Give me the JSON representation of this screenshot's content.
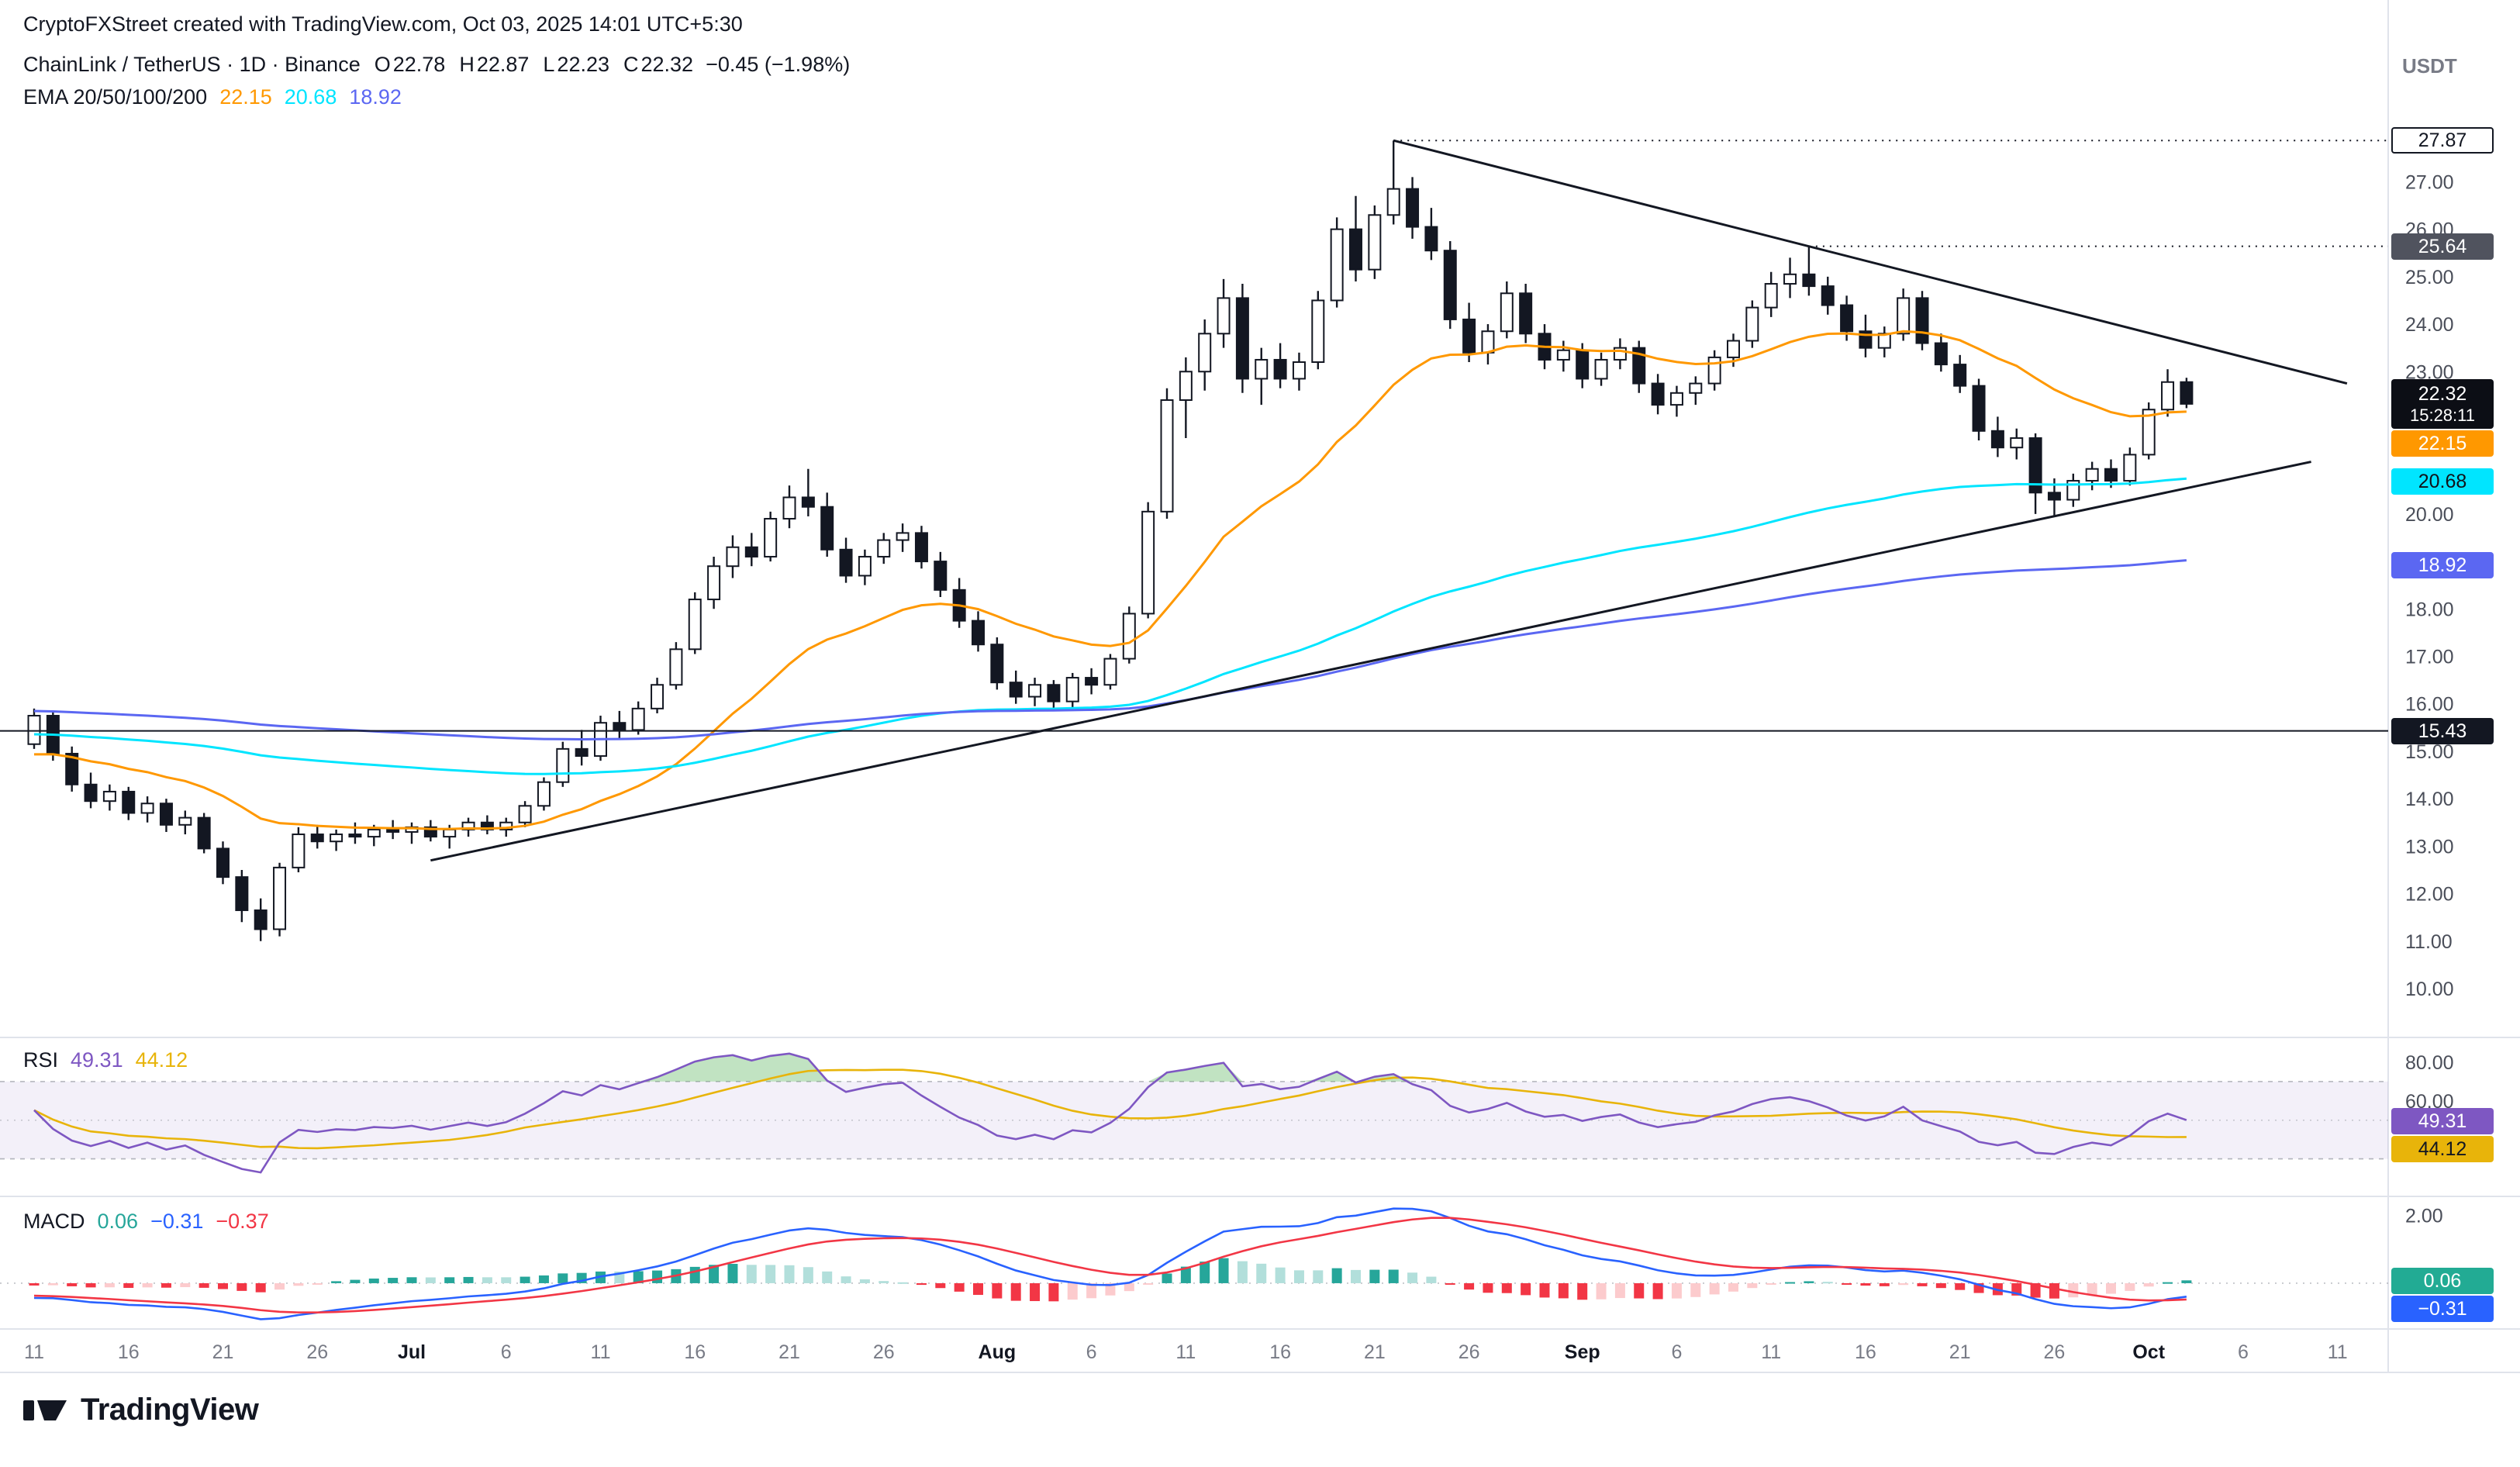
{
  "attribution": "CryptoFXStreet created with TradingView.com, Oct 03, 2025 14:01 UTC+5:30",
  "quote_currency": "USDT",
  "header": {
    "series_title": "ChainLink / TetherUS · 1D · Binance",
    "ohlc_labels": {
      "o": "O",
      "h": "H",
      "l": "L",
      "c": "C"
    },
    "ohlc": {
      "o": "22.78",
      "h": "22.87",
      "l": "22.23",
      "c": "22.32"
    },
    "change": "−0.45 (−1.98%)",
    "ema_label": "EMA 20/50/100/200"
  },
  "indicator_labels": {
    "rsi": "RSI",
    "macd": "MACD"
  },
  "footer": {
    "brand": "TradingView"
  },
  "colors": {
    "text": "#131722",
    "axis_text": "#4a4e59",
    "time_text": "#787b86",
    "month_text": "#131722",
    "separator": "#e0e3eb",
    "up_candle": "#ffffff",
    "down_candle": "#131722",
    "candle_border": "#131722",
    "trendline": "#131722",
    "hline": "#131722",
    "rsi_band": "rgba(126,87,194,0.09)",
    "rsi_guide": "#9598a1",
    "rsi_overbought_fill": "rgba(76,175,80,0.35)",
    "hist_pos_strong": "#26a69a",
    "hist_pos_weak": "#b2dfdb",
    "hist_neg_strong": "#f23645",
    "hist_neg_weak": "#fccbcd"
  },
  "chart_data": {
    "type": "candlestick",
    "symbol": "ChainLink / TetherUS",
    "exchange": "Binance",
    "interval": "1D",
    "last_close": 22.32,
    "countdown": "15:28:11",
    "candles": [
      [
        15.15,
        15.9,
        15.05,
        15.75
      ],
      [
        15.75,
        15.85,
        14.8,
        14.95
      ],
      [
        14.95,
        15.1,
        14.15,
        14.3
      ],
      [
        14.3,
        14.55,
        13.8,
        13.95
      ],
      [
        13.95,
        14.3,
        13.75,
        14.15
      ],
      [
        14.15,
        14.25,
        13.55,
        13.7
      ],
      [
        13.7,
        14.05,
        13.5,
        13.9
      ],
      [
        13.9,
        14.0,
        13.3,
        13.45
      ],
      [
        13.45,
        13.75,
        13.25,
        13.6
      ],
      [
        13.6,
        13.7,
        12.85,
        12.95
      ],
      [
        12.95,
        13.1,
        12.2,
        12.35
      ],
      [
        12.35,
        12.5,
        11.4,
        11.65
      ],
      [
        11.65,
        11.9,
        11.0,
        11.25
      ],
      [
        11.25,
        12.65,
        11.1,
        12.55
      ],
      [
        12.55,
        13.4,
        12.45,
        13.25
      ],
      [
        13.25,
        13.45,
        12.95,
        13.1
      ],
      [
        13.1,
        13.35,
        12.9,
        13.25
      ],
      [
        13.25,
        13.5,
        13.05,
        13.2
      ],
      [
        13.2,
        13.45,
        13.0,
        13.35
      ],
      [
        13.35,
        13.55,
        13.15,
        13.3
      ],
      [
        13.3,
        13.5,
        13.05,
        13.4
      ],
      [
        13.4,
        13.55,
        13.1,
        13.2
      ],
      [
        13.2,
        13.45,
        12.95,
        13.35
      ],
      [
        13.35,
        13.6,
        13.2,
        13.5
      ],
      [
        13.5,
        13.65,
        13.25,
        13.35
      ],
      [
        13.35,
        13.6,
        13.2,
        13.5
      ],
      [
        13.5,
        13.95,
        13.4,
        13.85
      ],
      [
        13.85,
        14.45,
        13.75,
        14.35
      ],
      [
        14.35,
        15.2,
        14.25,
        15.05
      ],
      [
        15.05,
        15.45,
        14.7,
        14.9
      ],
      [
        14.9,
        15.75,
        14.8,
        15.6
      ],
      [
        15.6,
        15.85,
        15.25,
        15.45
      ],
      [
        15.45,
        16.05,
        15.35,
        15.9
      ],
      [
        15.9,
        16.55,
        15.8,
        16.4
      ],
      [
        16.4,
        17.3,
        16.3,
        17.15
      ],
      [
        17.15,
        18.35,
        17.05,
        18.2
      ],
      [
        18.2,
        19.1,
        18.0,
        18.9
      ],
      [
        18.9,
        19.55,
        18.65,
        19.3
      ],
      [
        19.3,
        19.6,
        18.9,
        19.1
      ],
      [
        19.1,
        20.05,
        19.0,
        19.9
      ],
      [
        19.9,
        20.6,
        19.7,
        20.35
      ],
      [
        20.35,
        20.95,
        19.95,
        20.15
      ],
      [
        20.15,
        20.45,
        19.1,
        19.25
      ],
      [
        19.25,
        19.5,
        18.55,
        18.7
      ],
      [
        18.7,
        19.25,
        18.5,
        19.1
      ],
      [
        19.1,
        19.6,
        18.95,
        19.45
      ],
      [
        19.45,
        19.8,
        19.2,
        19.6
      ],
      [
        19.6,
        19.75,
        18.85,
        19.0
      ],
      [
        19.0,
        19.2,
        18.25,
        18.4
      ],
      [
        18.4,
        18.65,
        17.6,
        17.75
      ],
      [
        17.75,
        17.95,
        17.1,
        17.25
      ],
      [
        17.25,
        17.4,
        16.3,
        16.45
      ],
      [
        16.45,
        16.7,
        16.0,
        16.15
      ],
      [
        16.15,
        16.55,
        15.95,
        16.4
      ],
      [
        16.4,
        16.5,
        15.9,
        16.05
      ],
      [
        16.05,
        16.65,
        15.85,
        16.55
      ],
      [
        16.55,
        16.75,
        16.2,
        16.4
      ],
      [
        16.4,
        17.05,
        16.3,
        16.95
      ],
      [
        16.95,
        18.05,
        16.85,
        17.9
      ],
      [
        17.9,
        20.25,
        17.8,
        20.05
      ],
      [
        20.05,
        22.65,
        19.9,
        22.4
      ],
      [
        22.4,
        23.3,
        21.6,
        23.0
      ],
      [
        23.0,
        24.1,
        22.6,
        23.8
      ],
      [
        23.8,
        24.95,
        23.5,
        24.55
      ],
      [
        24.55,
        24.85,
        22.55,
        22.85
      ],
      [
        22.85,
        23.5,
        22.3,
        23.25
      ],
      [
        23.25,
        23.6,
        22.65,
        22.85
      ],
      [
        22.85,
        23.4,
        22.6,
        23.2
      ],
      [
        23.2,
        24.7,
        23.05,
        24.5
      ],
      [
        24.5,
        26.25,
        24.35,
        26.0
      ],
      [
        26.0,
        26.7,
        24.9,
        25.15
      ],
      [
        25.15,
        26.5,
        24.95,
        26.3
      ],
      [
        26.3,
        27.87,
        26.1,
        26.85
      ],
      [
        26.85,
        27.1,
        25.8,
        26.05
      ],
      [
        26.05,
        26.45,
        25.35,
        25.55
      ],
      [
        25.55,
        25.75,
        23.9,
        24.1
      ],
      [
        24.1,
        24.45,
        23.2,
        23.4
      ],
      [
        23.4,
        24.0,
        23.15,
        23.85
      ],
      [
        23.85,
        24.9,
        23.7,
        24.65
      ],
      [
        24.65,
        24.85,
        23.6,
        23.8
      ],
      [
        23.8,
        24.0,
        23.05,
        23.25
      ],
      [
        23.25,
        23.65,
        23.0,
        23.45
      ],
      [
        23.45,
        23.6,
        22.65,
        22.85
      ],
      [
        22.85,
        23.4,
        22.7,
        23.25
      ],
      [
        23.25,
        23.7,
        23.05,
        23.5
      ],
      [
        23.5,
        23.65,
        22.55,
        22.75
      ],
      [
        22.75,
        22.95,
        22.1,
        22.3
      ],
      [
        22.3,
        22.7,
        22.05,
        22.55
      ],
      [
        22.55,
        22.9,
        22.3,
        22.75
      ],
      [
        22.75,
        23.45,
        22.6,
        23.3
      ],
      [
        23.3,
        23.8,
        23.1,
        23.65
      ],
      [
        23.65,
        24.5,
        23.5,
        24.35
      ],
      [
        24.35,
        25.1,
        24.15,
        24.85
      ],
      [
        24.85,
        25.4,
        24.55,
        25.05
      ],
      [
        25.05,
        25.64,
        24.6,
        24.8
      ],
      [
        24.8,
        25.0,
        24.2,
        24.4
      ],
      [
        24.4,
        24.6,
        23.65,
        23.85
      ],
      [
        23.85,
        24.2,
        23.3,
        23.5
      ],
      [
        23.5,
        23.95,
        23.3,
        23.8
      ],
      [
        23.8,
        24.75,
        23.65,
        24.55
      ],
      [
        24.55,
        24.7,
        23.45,
        23.6
      ],
      [
        23.6,
        23.8,
        23.0,
        23.15
      ],
      [
        23.15,
        23.35,
        22.55,
        22.7
      ],
      [
        22.7,
        22.85,
        21.55,
        21.75
      ],
      [
        21.75,
        22.05,
        21.2,
        21.4
      ],
      [
        21.4,
        21.8,
        21.15,
        21.6
      ],
      [
        21.6,
        21.7,
        20.0,
        20.45
      ],
      [
        20.45,
        20.75,
        19.95,
        20.3
      ],
      [
        20.3,
        20.85,
        20.15,
        20.7
      ],
      [
        20.7,
        21.1,
        20.5,
        20.95
      ],
      [
        20.95,
        21.15,
        20.55,
        20.7
      ],
      [
        20.7,
        21.4,
        20.6,
        21.25
      ],
      [
        21.25,
        22.35,
        21.15,
        22.2
      ],
      [
        22.2,
        23.05,
        22.05,
        22.78
      ],
      [
        22.78,
        22.87,
        22.23,
        22.32
      ]
    ],
    "price_axis": {
      "range": [
        8.97,
        29.85
      ],
      "ticks": [
        27,
        26,
        25,
        24,
        23,
        20,
        18,
        17,
        16,
        15,
        14,
        13,
        12,
        11,
        10
      ]
    },
    "rsi_axis": {
      "range": [
        13,
        90
      ],
      "ticks": [
        80,
        60
      ],
      "band": [
        30,
        70
      ],
      "middle": 50
    },
    "macd_axis": {
      "ticks": [
        2
      ]
    },
    "ema_overlays": [
      {
        "period": 20,
        "seed": 14.85,
        "color": "#ff9800",
        "value": "22.15"
      },
      {
        "period": 100,
        "seed": 15.35,
        "color": "#00e5ff",
        "value": "20.68"
      },
      {
        "period": 200,
        "seed": 15.85,
        "color": "#5b67f2",
        "value": "18.92"
      }
    ],
    "rsi": {
      "period": 14,
      "ma_period": 14,
      "seed_avg_gain": 0.16,
      "seed_avg_loss": 0.13,
      "value": "49.31",
      "ma_value": "44.12",
      "line_color": "#7e57c2",
      "ma_color": "#e8b40a"
    },
    "macd": {
      "fast": 12,
      "slow": 26,
      "signal_period": 9,
      "seed_fast": 15.4,
      "seed_slow": 15.9,
      "seed_signal": -0.35,
      "hist_value": "0.06",
      "macd_value": "−0.31",
      "signal_value": "−0.37",
      "line_color": "#2962ff",
      "signal_color": "#f23645"
    },
    "trendlines": [
      {
        "x1_day": 72,
        "price1": 27.87,
        "x2_day": 122.5,
        "price2": 22.75
      },
      {
        "x1_day": 21,
        "price1": 12.7,
        "x2_day": 120.6,
        "price2": 21.1
      }
    ],
    "hlines": [
      {
        "price": 15.43,
        "style": "solid",
        "from_day": -2
      },
      {
        "price": 27.87,
        "style": "dotted",
        "from_day": 72
      },
      {
        "price": 25.64,
        "style": "dotted",
        "from_day": 94
      }
    ],
    "price_scale_labels": [
      {
        "pane": "main",
        "value": 27.87,
        "text": "27.87",
        "bg": "#ffffff",
        "fg": "#131722",
        "border": "#131722"
      },
      {
        "pane": "main",
        "value": 25.64,
        "text": "25.64",
        "bg": "#50535e",
        "fg": "#ffffff"
      },
      {
        "pane": "main",
        "value": 22.32,
        "text": "22.32",
        "sub": "15:28:11",
        "bg": "#0c0e15",
        "fg": "#ffffff"
      },
      {
        "pane": "main",
        "value": 22.15,
        "text": "22.15",
        "bg": "#ff9800",
        "fg": "#ffffff"
      },
      {
        "pane": "main",
        "value": 20.68,
        "text": "20.68",
        "bg": "#00e5ff",
        "fg": "#10131a"
      },
      {
        "pane": "main",
        "value": 18.92,
        "text": "18.92",
        "bg": "#5b67f2",
        "fg": "#ffffff"
      },
      {
        "pane": "main",
        "value": 15.43,
        "text": "15.43",
        "bg": "#131722",
        "fg": "#ffffff"
      },
      {
        "pane": "rsi",
        "value": 49.31,
        "text": "49.31",
        "bg": "#7e57c2",
        "fg": "#ffffff"
      },
      {
        "pane": "rsi",
        "value": 44.12,
        "text": "44.12",
        "bg": "#e8b40a",
        "fg": "#131722"
      },
      {
        "pane": "macd",
        "value": 0.06,
        "text": "0.06",
        "bg": "#22ab94",
        "fg": "#ffffff"
      },
      {
        "pane": "macd",
        "value": -0.31,
        "text": "−0.31",
        "bg": "#2962ff",
        "fg": "#ffffff"
      }
    ],
    "x_ticks": [
      {
        "d": 0,
        "t": "11"
      },
      {
        "d": 5,
        "t": "16"
      },
      {
        "d": 10,
        "t": "21"
      },
      {
        "d": 15,
        "t": "26"
      },
      {
        "d": 20,
        "t": "Jul",
        "m": true
      },
      {
        "d": 25,
        "t": "6"
      },
      {
        "d": 30,
        "t": "11"
      },
      {
        "d": 35,
        "t": "16"
      },
      {
        "d": 40,
        "t": "21"
      },
      {
        "d": 45,
        "t": "26"
      },
      {
        "d": 51,
        "t": "Aug",
        "m": true
      },
      {
        "d": 56,
        "t": "6"
      },
      {
        "d": 61,
        "t": "11"
      },
      {
        "d": 66,
        "t": "16"
      },
      {
        "d": 71,
        "t": "21"
      },
      {
        "d": 76,
        "t": "26"
      },
      {
        "d": 82,
        "t": "Sep",
        "m": true
      },
      {
        "d": 87,
        "t": "6"
      },
      {
        "d": 92,
        "t": "11"
      },
      {
        "d": 97,
        "t": "16"
      },
      {
        "d": 102,
        "t": "21"
      },
      {
        "d": 107,
        "t": "26"
      },
      {
        "d": 112,
        "t": "Oct",
        "m": true
      },
      {
        "d": 117,
        "t": "6"
      },
      {
        "d": 122,
        "t": "11"
      }
    ]
  }
}
